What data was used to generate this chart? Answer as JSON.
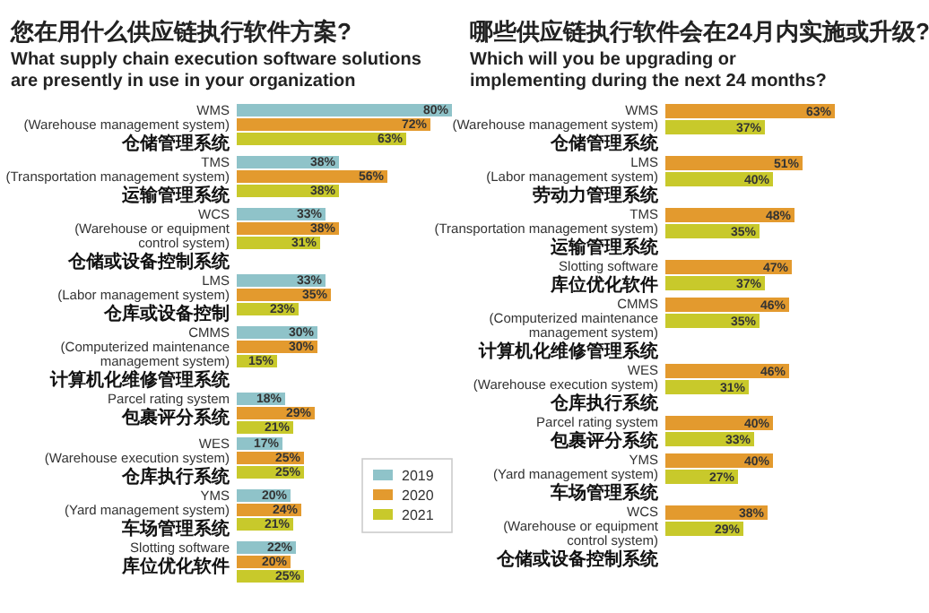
{
  "chart_data": [
    {
      "type": "bar",
      "orientation": "horizontal",
      "legend": "bottom right",
      "title": "您在用什么供应链执行软件方案?",
      "subtitle": "What supply chain execution software solutions\nare presently in use in your organization",
      "categories": [
        "WMS\n(Warehouse management system)\n仓储管理系统",
        "TMS\n(Transportation management system)\n运输管理系统",
        "WCS\n(Warehouse or equipment\ncontrol system)\n仓储或设备控制系统",
        "LMS\n(Labor management system)\n仓库或设备控制",
        "CMMS\n(Computerized maintenance\nmanagement system)\n计算机化维修管理系统",
        "Parcel rating system\n包裹评分系统",
        "WES\n(Warehouse execution system)\n仓库执行系统",
        "YMS\n(Yard management system)\n车场管理系统",
        "Slotting software\n库位优化软件"
      ],
      "series": [
        {
          "name": "2019",
          "color": "#8fc3c9",
          "values": [
            80,
            38,
            33,
            33,
            30,
            18,
            17,
            20,
            22
          ],
          "value_labels": [
            "80%",
            "38%",
            "33%",
            "33%",
            "30%",
            "18%",
            "17%",
            "20%",
            "22%"
          ]
        },
        {
          "name": "2020",
          "color": "#e39a2e",
          "values": [
            72,
            56,
            38,
            35,
            30,
            29,
            25,
            24,
            20
          ],
          "value_labels": [
            "72%",
            "56%",
            "38%",
            "35%",
            "30%",
            "29%",
            "25%",
            "24%",
            "20%"
          ]
        },
        {
          "name": "2021",
          "color": "#c8c92b",
          "values": [
            63,
            38,
            31,
            23,
            15,
            21,
            25,
            21,
            25
          ],
          "value_labels": [
            "63%",
            "38%",
            "31%",
            "23%",
            "15%",
            "21%",
            "25%",
            "21%",
            "25%"
          ]
        }
      ]
    },
    {
      "type": "bar",
      "orientation": "horizontal",
      "title": "哪些供应链执行软件会在24月内实施或升级?",
      "subtitle": "Which will you be upgrading or\nimplementing during the next 24 months?",
      "categories": [
        "WMS\n(Warehouse management system)\n仓储管理系统",
        "LMS\n(Labor management system)\n劳动力管理系统",
        "TMS\n(Transportation management system)\n运输管理系统",
        "Slotting software\n库位优化软件",
        "CMMS\n(Computerized maintenance\nmanagement system)\n计算机化维修管理系统",
        "WES\n(Warehouse execution system)\n仓库执行系统",
        "Parcel rating system\n包裹评分系统",
        "YMS\n(Yard management system)\n车场管理系统",
        "WCS\n(Warehouse or equipment\ncontrol system)\n仓储或设备控制系统"
      ],
      "series": [
        {
          "color": "#e39a2e",
          "values": [
            63,
            51,
            48,
            47,
            46,
            46,
            40,
            40,
            38
          ],
          "value_labels": [
            "63%",
            "51%",
            "48%",
            "47%",
            "46%",
            "46%",
            "40%",
            "40%",
            "38%"
          ]
        },
        {
          "color": "#c8c92b",
          "values": [
            37,
            40,
            35,
            37,
            35,
            31,
            33,
            27,
            29
          ],
          "value_labels": [
            "37%",
            "40%",
            "35%",
            "37%",
            "35%",
            "31%",
            "33%",
            "27%",
            "29%"
          ]
        }
      ]
    }
  ]
}
